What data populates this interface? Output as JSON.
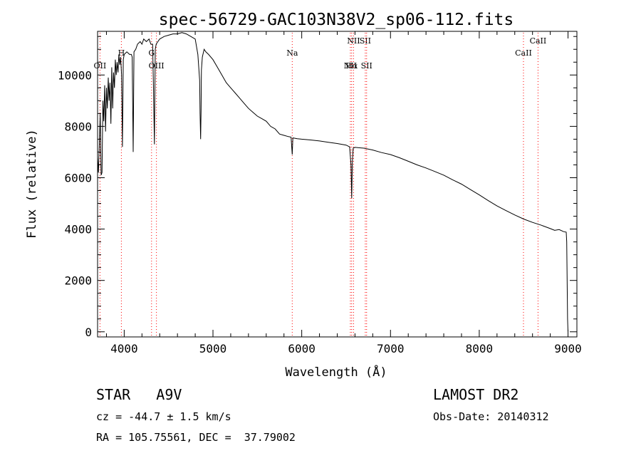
{
  "chart_data": {
    "type": "line",
    "title": "spec-56729-GAC103N38V2_sp06-112.fits",
    "xlabel": "Wavelength (Å)",
    "ylabel": "Flux (relative)",
    "xlim": [
      3700,
      9100
    ],
    "ylim": [
      -200,
      11700
    ],
    "x_ticks": [
      4000,
      5000,
      6000,
      7000,
      8000,
      9000
    ],
    "y_ticks": [
      0,
      2000,
      4000,
      6000,
      8000,
      10000
    ],
    "grid": false,
    "series": [
      {
        "x": [
          3700,
          3710,
          3720,
          3730,
          3740,
          3750,
          3760,
          3770,
          3780,
          3790,
          3800,
          3810,
          3820,
          3830,
          3840,
          3850,
          3860,
          3870,
          3880,
          3890,
          3900,
          3910,
          3920,
          3930,
          3940,
          3950,
          3960,
          3970,
          3980,
          3990,
          4000,
          4030,
          4060,
          4080,
          4090,
          4101,
          4110,
          4130,
          4150,
          4180,
          4200,
          4220,
          4250,
          4280,
          4300,
          4320,
          4330,
          4340,
          4350,
          4360,
          4380,
          4400,
          4450,
          4500,
          4550,
          4600,
          4650,
          4700,
          4750,
          4800,
          4830,
          4850,
          4855,
          4861,
          4866,
          4870,
          4880,
          4900,
          4920,
          4950,
          5000,
          5050,
          5100,
          5150,
          5200,
          5250,
          5300,
          5350,
          5400,
          5450,
          5500,
          5550,
          5600,
          5650,
          5700,
          5750,
          5800,
          5850,
          5880,
          5893,
          5900,
          5950,
          6000,
          6100,
          6200,
          6300,
          6400,
          6500,
          6540,
          6555,
          6563,
          6570,
          6580,
          6600,
          6700,
          6800,
          6900,
          7000,
          7100,
          7200,
          7300,
          7400,
          7500,
          7600,
          7700,
          7800,
          7900,
          8000,
          8100,
          8200,
          8300,
          8400,
          8500,
          8600,
          8700,
          8800,
          8850,
          8900,
          8950,
          8980,
          8985,
          8990,
          8995,
          9000
        ],
        "y": [
          6800,
          6200,
          7300,
          8500,
          6100,
          6200,
          9000,
          8200,
          9600,
          7800,
          9500,
          8700,
          9900,
          9000,
          9700,
          8100,
          10300,
          8700,
          10100,
          9500,
          10600,
          10000,
          10500,
          10100,
          10800,
          10400,
          10700,
          10000,
          7200,
          10600,
          10800,
          10900,
          10800,
          10800,
          10700,
          7000,
          10900,
          11000,
          11200,
          11300,
          11200,
          11400,
          11300,
          11400,
          11200,
          11200,
          9500,
          7300,
          11000,
          11200,
          11300,
          11400,
          11500,
          11550,
          11600,
          11600,
          11650,
          11600,
          11500,
          11400,
          10800,
          9800,
          8500,
          7500,
          8600,
          10200,
          10700,
          11000,
          10900,
          10800,
          10600,
          10300,
          10000,
          9700,
          9500,
          9300,
          9100,
          8900,
          8700,
          8550,
          8400,
          8300,
          8200,
          8000,
          7900,
          7700,
          7650,
          7600,
          7580,
          6900,
          7550,
          7520,
          7500,
          7470,
          7430,
          7380,
          7330,
          7270,
          7200,
          6500,
          5200,
          6600,
          7150,
          7180,
          7150,
          7080,
          6980,
          6900,
          6780,
          6640,
          6500,
          6380,
          6240,
          6100,
          5920,
          5750,
          5540,
          5330,
          5110,
          4900,
          4720,
          4550,
          4390,
          4260,
          4150,
          4020,
          3950,
          3980,
          3900,
          3880,
          3500,
          2000,
          500,
          0
        ]
      }
    ],
    "lines": [
      {
        "wavelength": 3727,
        "label": "OII",
        "label_pos": "upper"
      },
      {
        "wavelength": 3968,
        "label": "H",
        "label_pos": "top"
      },
      {
        "wavelength": 4308,
        "label": "G",
        "label_pos": "top"
      },
      {
        "wavelength": 4363,
        "label": "OIII",
        "label_pos": "upper"
      },
      {
        "wavelength": 5893,
        "label": "Na",
        "label_pos": "top"
      },
      {
        "wavelength": 6548,
        "label": "NII",
        "label_pos": "upper"
      },
      {
        "wavelength": 6563,
        "label": "Hα",
        "label_pos": "low"
      },
      {
        "wavelength": 6584,
        "label": "NII",
        "label_pos": "high"
      },
      {
        "wavelength": 6716,
        "label": "SII",
        "label_pos": "high"
      },
      {
        "wavelength": 6731,
        "label": "SII",
        "label_pos": "low"
      },
      {
        "wavelength": 8498,
        "label": "CaII",
        "label_pos": "top"
      },
      {
        "wavelength": 8662,
        "label": "CaII",
        "label_pos": "high"
      }
    ],
    "line_color": "#ff0000"
  },
  "info": {
    "class": "STAR   A9V",
    "survey": "LAMOST DR2",
    "cz": "cz = -44.7 ± 1.5 km/s",
    "obs_date": "Obs-Date: 20140312",
    "coords": "RA = 105.75561, DEC =  37.79002"
  }
}
